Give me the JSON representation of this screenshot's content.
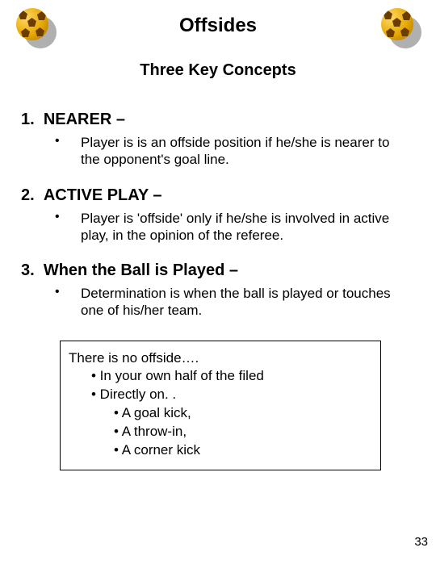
{
  "title": "Offsides",
  "subtitle": "Three Key Concepts",
  "items": [
    {
      "num": "1.",
      "heading": "NEARER –",
      "text": "Player is is an offside position if he/she is nearer to the opponent's goal line."
    },
    {
      "num": "2.",
      "heading": "ACTIVE PLAY –",
      "text": "Player is 'offside' only if he/she is involved in active play, in the opinion of the referee."
    },
    {
      "num": "3.",
      "heading": "When the Ball is Played –",
      "text": "Determination is when the ball is played or touches one of his/her team."
    }
  ],
  "box": {
    "intro": "There is no offside….",
    "l2a": "• In your own half of the filed",
    "l2b": "• Directly on. .",
    "l3a": "• A goal kick,",
    "l3b": "• A throw-in,",
    "l3c": "• A corner kick"
  },
  "bullet_char": "•",
  "page_number": "33",
  "colors": {
    "background": "#ffffff",
    "text": "#000000",
    "ball_light": "#ffd966",
    "ball_mid": "#e6a800",
    "ball_dark": "#a87000",
    "pentagon": "#6b3e00",
    "shadow": "#b0b0b0",
    "border": "#000000"
  },
  "fonts": {
    "title_pt": 24,
    "subtitle_pt": 20,
    "heading_pt": 20,
    "body_pt": 17
  }
}
